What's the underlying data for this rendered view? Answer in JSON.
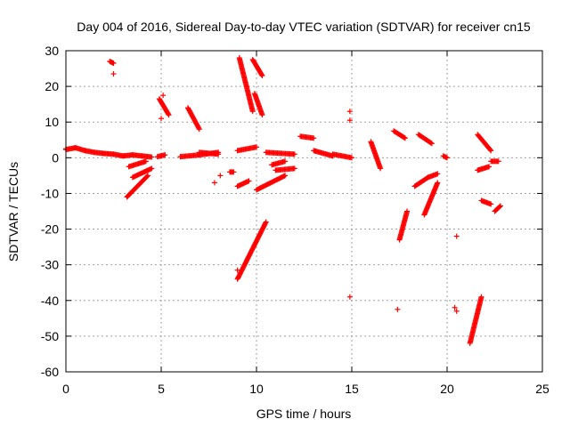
{
  "chart_data": {
    "type": "scatter",
    "title": "Day 004 of 2016, Sidereal Day-to-day VTEC variation (SDTVAR) for receiver cn15",
    "xlabel": "GPS time / hours",
    "ylabel": "SDTVAR / TECUs",
    "xlim": [
      0,
      25
    ],
    "ylim": [
      -60,
      30
    ],
    "xticks": [
      0,
      5,
      10,
      15,
      20,
      25
    ],
    "yticks": [
      -60,
      -50,
      -40,
      -30,
      -20,
      -10,
      0,
      10,
      20,
      30
    ],
    "xtick_labels": [
      "0",
      "5",
      "10",
      "15",
      "20",
      "25"
    ],
    "ytick_labels": [
      "-60",
      "-50",
      "-40",
      "-30",
      "-20",
      "-10",
      "0",
      "10",
      "20",
      "30"
    ],
    "grid": true,
    "marker": "+",
    "color": "#ff0000",
    "series": [
      {
        "name": "SDTVAR",
        "segments": [
          [
            [
              0.0,
              2.3
            ],
            [
              0.5,
              2.8
            ],
            [
              1.0,
              2.0
            ],
            [
              1.5,
              1.5
            ],
            [
              2.0,
              1.2
            ],
            [
              2.5,
              1.0
            ],
            [
              3.0,
              0.5
            ]
          ],
          [
            [
              3.0,
              0.5
            ],
            [
              3.5,
              0.8
            ],
            [
              4.0,
              0.5
            ],
            [
              4.5,
              0.2
            ]
          ],
          [
            [
              3.3,
              -2.5
            ],
            [
              4.2,
              -1.0
            ]
          ],
          [
            [
              3.5,
              -5.5
            ],
            [
              4.5,
              -3.0
            ]
          ],
          [
            [
              3.2,
              -11.0
            ],
            [
              4.3,
              -5.0
            ]
          ],
          [
            [
              4.8,
              0.3
            ],
            [
              5.2,
              0.8
            ]
          ],
          [
            [
              2.3,
              27.0
            ],
            [
              2.5,
              26.5
            ]
          ],
          [
            [
              4.9,
              16.5
            ],
            [
              5.4,
              12.0
            ]
          ],
          [
            [
              6.0,
              0.3
            ],
            [
              7.0,
              0.8
            ],
            [
              8.0,
              1.5
            ]
          ],
          [
            [
              6.4,
              14.0
            ],
            [
              7.0,
              8.0
            ]
          ],
          [
            [
              7.0,
              1.5
            ],
            [
              8.0,
              1.0
            ]
          ],
          [
            [
              8.6,
              -4.0
            ],
            [
              8.8,
              -4.0
            ]
          ],
          [
            [
              9.0,
              -8.0
            ],
            [
              9.6,
              -6.5
            ]
          ],
          [
            [
              9.1,
              28.0
            ],
            [
              9.8,
              13.0
            ]
          ],
          [
            [
              9.8,
              27.5
            ],
            [
              10.3,
              23.0
            ]
          ],
          [
            [
              9.9,
              18.0
            ],
            [
              10.3,
              12.0
            ]
          ],
          [
            [
              9.0,
              2.0
            ],
            [
              10.0,
              3.0
            ]
          ],
          [
            [
              9.0,
              -34.0
            ],
            [
              10.5,
              -18.0
            ]
          ],
          [
            [
              10.0,
              -9.0
            ],
            [
              11.5,
              -5.0
            ]
          ],
          [
            [
              10.8,
              -2.0
            ],
            [
              11.5,
              -1.0
            ]
          ],
          [
            [
              10.5,
              1.5
            ],
            [
              12.0,
              1.0
            ]
          ],
          [
            [
              11.0,
              -3.5
            ],
            [
              12.0,
              -3.0
            ]
          ],
          [
            [
              12.3,
              6.0
            ],
            [
              13.0,
              5.5
            ]
          ],
          [
            [
              13.0,
              2.0
            ],
            [
              14.0,
              0.5
            ]
          ],
          [
            [
              14.0,
              1.0
            ],
            [
              15.0,
              0.0
            ]
          ],
          [
            [
              16.0,
              4.5
            ],
            [
              16.5,
              -3.0
            ]
          ],
          [
            [
              17.2,
              7.5
            ],
            [
              17.8,
              5.5
            ]
          ],
          [
            [
              17.5,
              -23.0
            ],
            [
              17.9,
              -15.0
            ]
          ],
          [
            [
              18.3,
              -8.0
            ],
            [
              19.0,
              -5.5
            ]
          ],
          [
            [
              18.5,
              6.5
            ],
            [
              19.2,
              4.0
            ]
          ],
          [
            [
              18.8,
              -16.0
            ],
            [
              19.5,
              -7.0
            ]
          ],
          [
            [
              19.0,
              -5.5
            ],
            [
              19.5,
              -4.5
            ]
          ],
          [
            [
              19.8,
              0.5
            ],
            [
              20.0,
              0.0
            ]
          ],
          [
            [
              21.2,
              -52.0
            ],
            [
              21.8,
              -39.0
            ]
          ],
          [
            [
              21.6,
              6.5
            ],
            [
              22.3,
              2.0
            ]
          ],
          [
            [
              21.6,
              -3.5
            ],
            [
              22.2,
              -2.5
            ]
          ],
          [
            [
              21.8,
              -12.0
            ],
            [
              22.3,
              -13.0
            ]
          ],
          [
            [
              22.3,
              -1.0
            ],
            [
              22.7,
              -1.0
            ]
          ],
          [
            [
              22.5,
              -15.0
            ],
            [
              22.8,
              -13.5
            ]
          ]
        ],
        "isolated": [
          [
            0.0,
            2.5
          ],
          [
            2.5,
            23.5
          ],
          [
            5.1,
            17.5
          ],
          [
            5.0,
            11.0
          ],
          [
            7.8,
            -7.0
          ],
          [
            8.1,
            -5.0
          ],
          [
            9.0,
            -31.5
          ],
          [
            14.9,
            13.0
          ],
          [
            14.9,
            10.5
          ],
          [
            14.9,
            -39.0
          ],
          [
            17.4,
            -42.5
          ],
          [
            20.5,
            -22.0
          ],
          [
            20.4,
            -42.0
          ],
          [
            20.5,
            -43.0
          ]
        ]
      }
    ]
  }
}
